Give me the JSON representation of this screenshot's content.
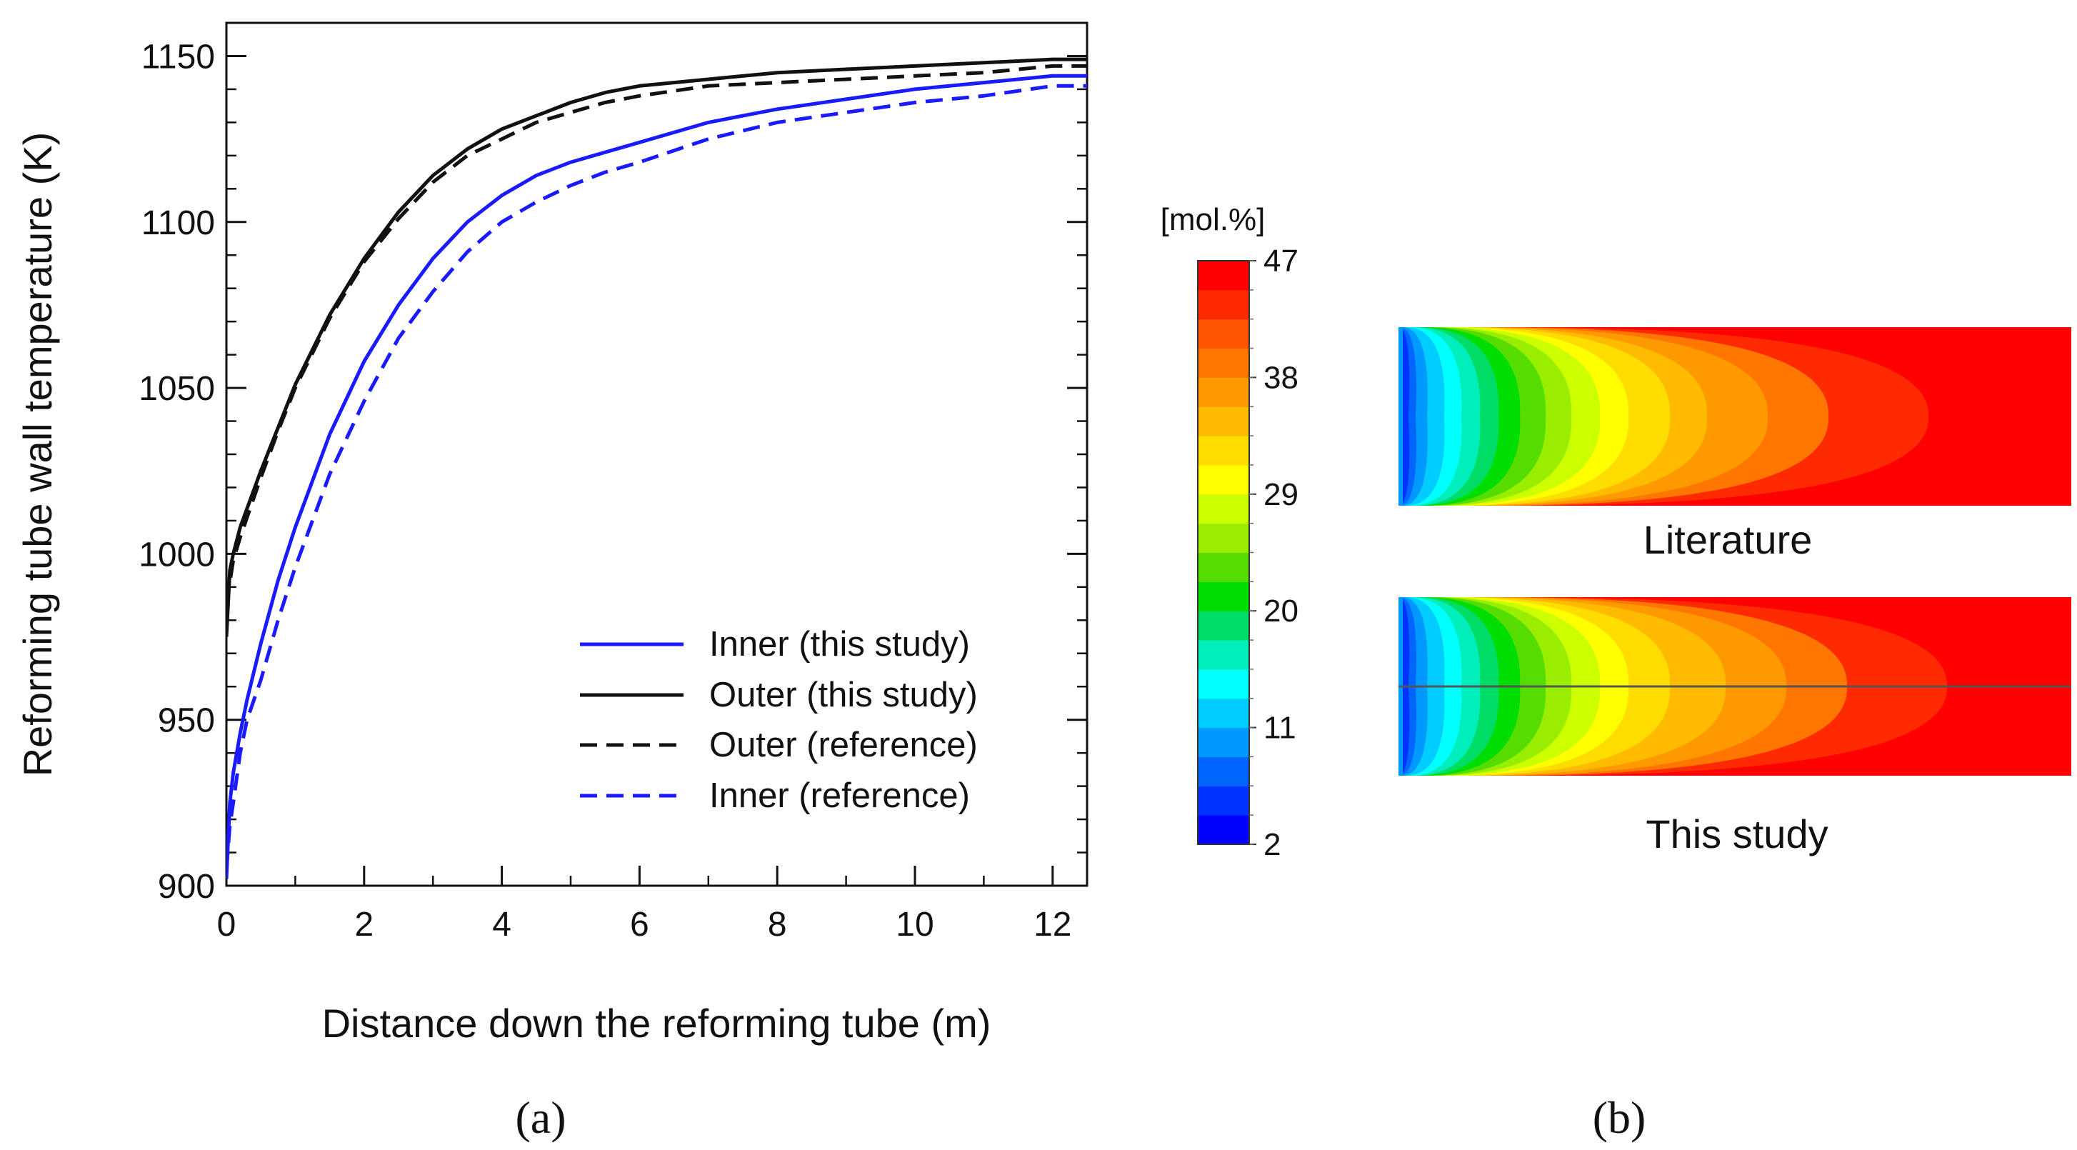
{
  "chart_data": [
    {
      "type": "line",
      "panel_label": "(a)",
      "xlabel": "Distance down the reforming tube (m)",
      "ylabel": "Reforming tube wall temperature (K)",
      "xlim": [
        0,
        12.5
      ],
      "ylim": [
        900,
        1160
      ],
      "xticks": [
        0,
        2,
        4,
        6,
        8,
        10,
        12
      ],
      "yticks": [
        900,
        950,
        1000,
        1050,
        1100,
        1150
      ],
      "legend_position": "lower-right",
      "grid": false,
      "series": [
        {
          "name": "Inner (this study)",
          "color": "#1a1aff",
          "dash": "solid",
          "x": [
            0,
            0.05,
            0.1,
            0.2,
            0.3,
            0.5,
            0.75,
            1,
            1.5,
            2,
            2.5,
            3,
            3.5,
            4,
            4.5,
            5,
            5.5,
            6,
            7,
            8,
            9,
            10,
            11,
            12,
            12.5
          ],
          "y": [
            902,
            925,
            934,
            946,
            956,
            973,
            992,
            1008,
            1036,
            1058,
            1075,
            1089,
            1100,
            1108,
            1114,
            1118,
            1121,
            1124,
            1130,
            1134,
            1137,
            1140,
            1142,
            1144,
            1144
          ]
        },
        {
          "name": "Outer (this study)",
          "color": "#111111",
          "dash": "solid",
          "x": [
            0,
            0.05,
            0.1,
            0.2,
            0.5,
            0.75,
            1,
            1.5,
            2,
            2.5,
            3,
            3.5,
            4,
            4.5,
            5,
            5.5,
            6,
            7,
            8,
            9,
            10,
            11,
            12,
            12.5
          ],
          "y": [
            975,
            995,
            1000,
            1008,
            1025,
            1038,
            1051,
            1072,
            1089,
            1103,
            1114,
            1122,
            1128,
            1132,
            1136,
            1139,
            1141,
            1143,
            1145,
            1146,
            1147,
            1148,
            1149,
            1149
          ]
        },
        {
          "name": "Outer (reference)",
          "color": "#111111",
          "dash": "dashed",
          "x": [
            0,
            0.1,
            0.2,
            0.5,
            0.75,
            1,
            1.5,
            2,
            2.5,
            3,
            3.5,
            4,
            4.5,
            5,
            5.5,
            6,
            7,
            8,
            9,
            10,
            11,
            12,
            12.5
          ],
          "y": [
            985,
            998,
            1005,
            1023,
            1037,
            1050,
            1071,
            1088,
            1101,
            1112,
            1120,
            1125,
            1130,
            1133,
            1136,
            1138,
            1141,
            1142,
            1143,
            1144,
            1145,
            1147,
            1147
          ]
        },
        {
          "name": "Inner (reference)",
          "color": "#1a1aff",
          "dash": "dashed",
          "x": [
            0,
            0.05,
            0.1,
            0.2,
            0.3,
            0.5,
            0.75,
            1,
            1.5,
            2,
            2.5,
            3,
            3.5,
            4,
            4.5,
            5,
            5.5,
            6,
            7,
            8,
            9,
            10,
            11,
            12,
            12.5
          ],
          "y": [
            905,
            918,
            925,
            940,
            950,
            962,
            980,
            996,
            1024,
            1046,
            1065,
            1079,
            1091,
            1100,
            1106,
            1111,
            1115,
            1118,
            1125,
            1130,
            1133,
            1136,
            1138,
            1141,
            1141
          ]
        }
      ]
    },
    {
      "type": "heatmap",
      "panel_label": "(b)",
      "colorbar_unit": "[mol.%]",
      "colorbar_range": [
        2,
        47
      ],
      "colorbar_tick_labels": [
        "47",
        "38",
        "29",
        "20",
        "11",
        "2"
      ],
      "colorbar_colors": [
        "#0000ff",
        "#0033ff",
        "#0066ff",
        "#0099ff",
        "#00ccff",
        "#00ffff",
        "#00eebb",
        "#00dd66",
        "#00dd00",
        "#55dd00",
        "#99ee00",
        "#ccff00",
        "#ffff00",
        "#ffdd00",
        "#ffbb00",
        "#ff9900",
        "#ff7700",
        "#ff5500",
        "#ff2a00",
        "#ff0000"
      ],
      "contour_maps": [
        {
          "caption": "Literature",
          "has_centerline": false
        },
        {
          "caption": "This study",
          "has_centerline": true
        }
      ]
    }
  ]
}
